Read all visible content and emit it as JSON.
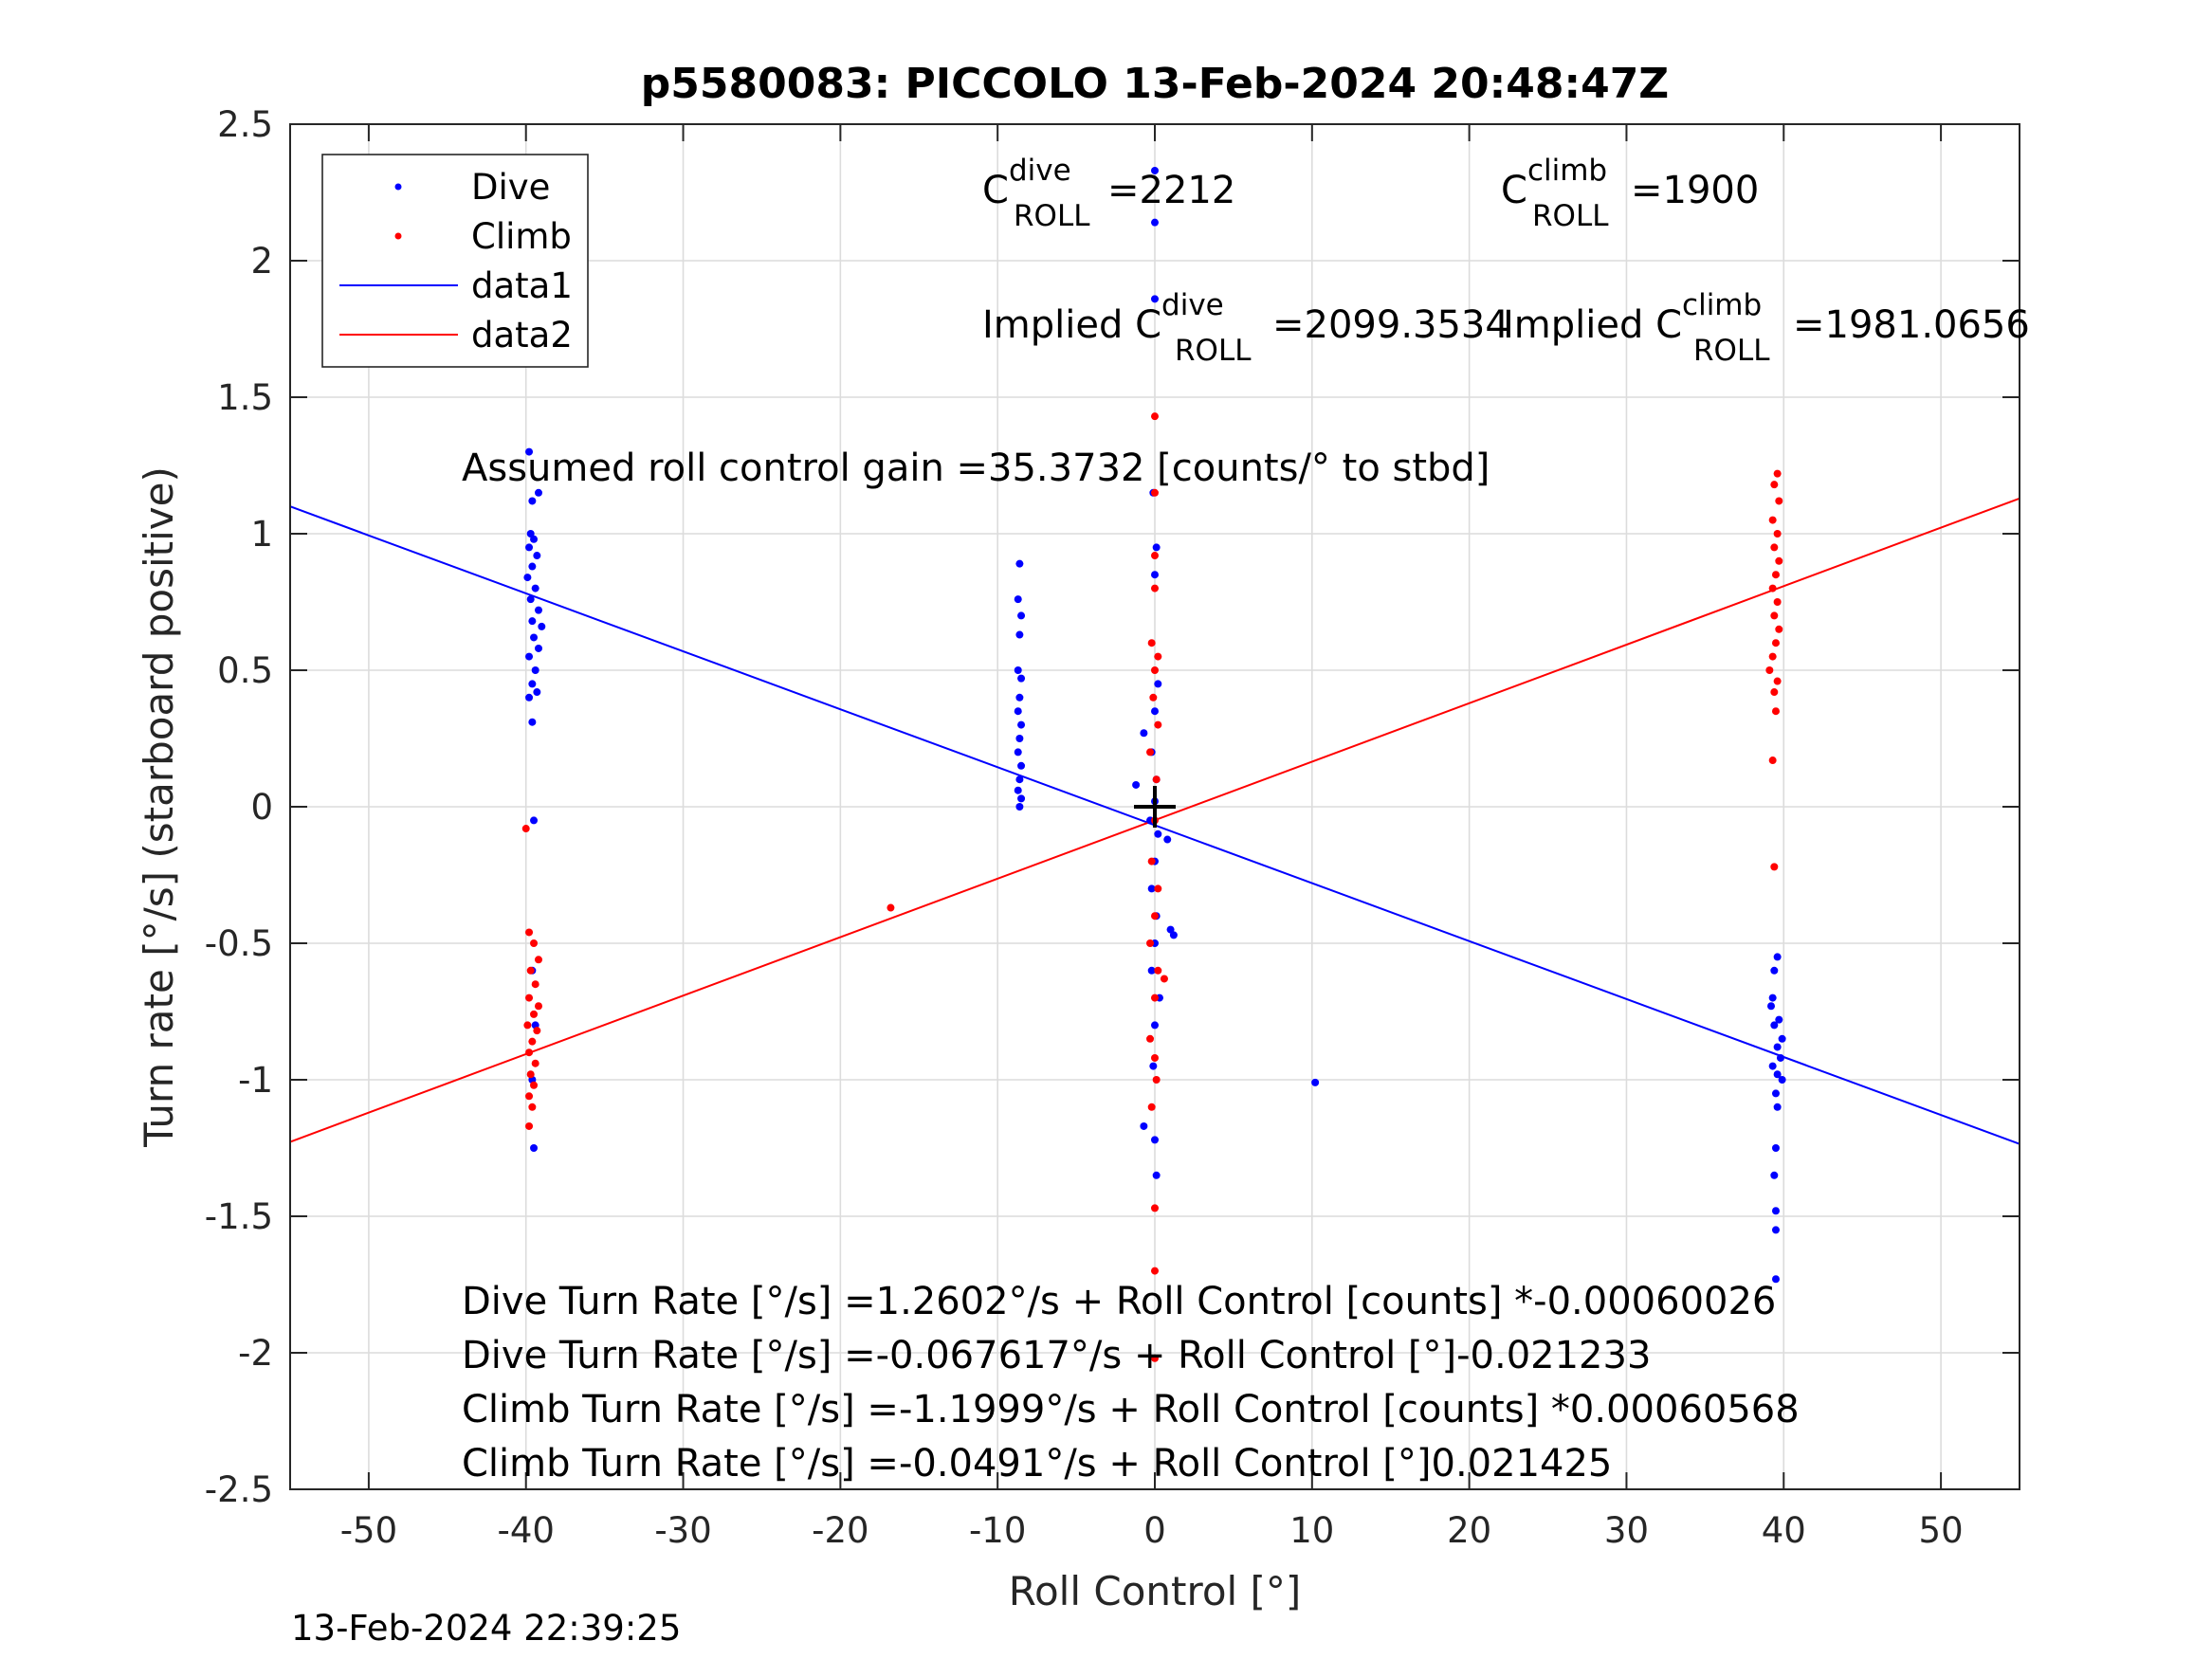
{
  "chart_data": {
    "type": "scatter",
    "title": "p5580083: PICCOLO 13-Feb-2024 20:48:47Z",
    "xlabel": "Roll Control [°]",
    "ylabel": "Turn rate [°/s] (starboard positive)",
    "xlim": [
      -55,
      55
    ],
    "ylim": [
      -2.5,
      2.5
    ],
    "xticks": [
      -50,
      -40,
      -30,
      -20,
      -10,
      0,
      10,
      20,
      30,
      40,
      50
    ],
    "yticks": [
      -2.5,
      -2,
      -1.5,
      -1,
      -0.5,
      0,
      0.5,
      1,
      1.5,
      2,
      2.5
    ],
    "xtick_labels": [
      "-50",
      "-40",
      "-30",
      "-20",
      "-10",
      "0",
      "10",
      "20",
      "30",
      "40",
      "50"
    ],
    "ytick_labels": [
      "-2.5",
      "-2",
      "-1.5",
      "-1",
      "-0.5",
      "0",
      "0.5",
      "1",
      "1.5",
      "2",
      "2.5"
    ],
    "grid": true,
    "legend_position": "top-left",
    "legend": [
      "Dive",
      "Climb",
      "data1",
      "data2"
    ],
    "colors": {
      "dive": "#0000ff",
      "climb": "#ff0000",
      "marker": "#000000"
    },
    "series": [
      {
        "name": "Dive",
        "kind": "points",
        "color": "#0000ff",
        "points": [
          [
            -39.8,
            1.3
          ],
          [
            -39.6,
            1.12
          ],
          [
            -39.2,
            1.15
          ],
          [
            -39.7,
            1.0
          ],
          [
            -39.5,
            0.98
          ],
          [
            -39.8,
            0.95
          ],
          [
            -39.3,
            0.92
          ],
          [
            -39.6,
            0.88
          ],
          [
            -39.9,
            0.84
          ],
          [
            -39.4,
            0.8
          ],
          [
            -39.7,
            0.76
          ],
          [
            -39.2,
            0.72
          ],
          [
            -39.6,
            0.68
          ],
          [
            -39.0,
            0.66
          ],
          [
            -39.5,
            0.62
          ],
          [
            -39.2,
            0.58
          ],
          [
            -39.8,
            0.55
          ],
          [
            -39.4,
            0.5
          ],
          [
            -39.6,
            0.45
          ],
          [
            -39.3,
            0.42
          ],
          [
            -39.8,
            0.4
          ],
          [
            -39.6,
            0.31
          ],
          [
            -39.5,
            -0.05
          ],
          [
            -39.6,
            -0.6
          ],
          [
            -39.4,
            -0.8
          ],
          [
            -39.6,
            -1.0
          ],
          [
            -39.5,
            -1.25
          ],
          [
            -8.6,
            0.89
          ],
          [
            -8.7,
            0.76
          ],
          [
            -8.5,
            0.7
          ],
          [
            -8.6,
            0.63
          ],
          [
            -8.7,
            0.5
          ],
          [
            -8.5,
            0.47
          ],
          [
            -8.6,
            0.4
          ],
          [
            -8.7,
            0.35
          ],
          [
            -8.5,
            0.3
          ],
          [
            -8.6,
            0.25
          ],
          [
            -8.7,
            0.2
          ],
          [
            -8.5,
            0.15
          ],
          [
            -8.6,
            0.1
          ],
          [
            -8.7,
            0.06
          ],
          [
            -8.5,
            0.03
          ],
          [
            -8.6,
            0.0
          ],
          [
            0.0,
            2.33
          ],
          [
            0.0,
            2.14
          ],
          [
            0.0,
            1.86
          ],
          [
            -0.1,
            1.15
          ],
          [
            0.1,
            0.95
          ],
          [
            0.0,
            0.85
          ],
          [
            -0.7,
            0.27
          ],
          [
            -1.2,
            0.08
          ],
          [
            0.2,
            0.45
          ],
          [
            0.0,
            0.35
          ],
          [
            -0.2,
            0.2
          ],
          [
            0.1,
            0.1
          ],
          [
            0.0,
            0.02
          ],
          [
            -0.3,
            -0.05
          ],
          [
            0.2,
            -0.1
          ],
          [
            0.0,
            -0.2
          ],
          [
            -0.2,
            -0.3
          ],
          [
            0.1,
            -0.4
          ],
          [
            0.0,
            -0.5
          ],
          [
            -0.2,
            -0.6
          ],
          [
            0.3,
            -0.7
          ],
          [
            1.0,
            -0.45
          ],
          [
            1.2,
            -0.47
          ],
          [
            0.8,
            -0.12
          ],
          [
            0.0,
            -0.8
          ],
          [
            -0.1,
            -0.95
          ],
          [
            -0.7,
            -1.17
          ],
          [
            0.0,
            -1.22
          ],
          [
            0.1,
            -1.35
          ],
          [
            10.2,
            -1.01
          ],
          [
            39.6,
            -0.55
          ],
          [
            39.4,
            -0.6
          ],
          [
            39.3,
            -0.7
          ],
          [
            39.2,
            -0.73
          ],
          [
            39.7,
            -0.78
          ],
          [
            39.4,
            -0.8
          ],
          [
            39.9,
            -0.85
          ],
          [
            39.6,
            -0.88
          ],
          [
            39.8,
            -0.92
          ],
          [
            39.3,
            -0.95
          ],
          [
            39.6,
            -0.98
          ],
          [
            39.9,
            -1.0
          ],
          [
            39.5,
            -1.05
          ],
          [
            39.6,
            -1.1
          ],
          [
            39.5,
            -1.25
          ],
          [
            39.4,
            -1.35
          ],
          [
            39.5,
            -1.48
          ],
          [
            39.5,
            -1.55
          ],
          [
            39.5,
            -1.73
          ]
        ]
      },
      {
        "name": "Climb",
        "kind": "points",
        "color": "#ff0000",
        "points": [
          [
            -40.0,
            -0.08
          ],
          [
            -39.8,
            -0.46
          ],
          [
            -39.5,
            -0.5
          ],
          [
            -39.2,
            -0.56
          ],
          [
            -39.7,
            -0.6
          ],
          [
            -39.4,
            -0.65
          ],
          [
            -39.8,
            -0.7
          ],
          [
            -39.2,
            -0.73
          ],
          [
            -39.5,
            -0.76
          ],
          [
            -39.9,
            -0.8
          ],
          [
            -39.3,
            -0.82
          ],
          [
            -39.6,
            -0.86
          ],
          [
            -39.8,
            -0.9
          ],
          [
            -39.4,
            -0.94
          ],
          [
            -39.7,
            -0.98
          ],
          [
            -39.5,
            -1.02
          ],
          [
            -39.8,
            -1.06
          ],
          [
            -39.6,
            -1.1
          ],
          [
            -39.8,
            -1.17
          ],
          [
            -16.8,
            -0.37
          ],
          [
            0.0,
            1.43
          ],
          [
            0.0,
            1.15
          ],
          [
            0.0,
            0.92
          ],
          [
            0.0,
            0.8
          ],
          [
            -0.2,
            0.6
          ],
          [
            0.2,
            0.55
          ],
          [
            0.0,
            0.5
          ],
          [
            -0.1,
            0.4
          ],
          [
            0.2,
            0.3
          ],
          [
            -0.3,
            0.2
          ],
          [
            0.1,
            0.1
          ],
          [
            0.0,
            -0.05
          ],
          [
            -0.2,
            -0.2
          ],
          [
            0.2,
            -0.3
          ],
          [
            0.0,
            -0.4
          ],
          [
            -0.3,
            -0.5
          ],
          [
            0.2,
            -0.6
          ],
          [
            0.6,
            -0.63
          ],
          [
            0.0,
            -0.7
          ],
          [
            -0.3,
            -0.85
          ],
          [
            0.0,
            -0.92
          ],
          [
            0.1,
            -1.0
          ],
          [
            -0.2,
            -1.1
          ],
          [
            0.0,
            -1.47
          ],
          [
            0.0,
            -1.7
          ],
          [
            0.0,
            -2.02
          ],
          [
            39.6,
            1.22
          ],
          [
            39.4,
            1.18
          ],
          [
            39.7,
            1.12
          ],
          [
            39.3,
            1.05
          ],
          [
            39.6,
            1.0
          ],
          [
            39.4,
            0.95
          ],
          [
            39.7,
            0.9
          ],
          [
            39.5,
            0.85
          ],
          [
            39.3,
            0.8
          ],
          [
            39.6,
            0.75
          ],
          [
            39.4,
            0.7
          ],
          [
            39.7,
            0.65
          ],
          [
            39.5,
            0.6
          ],
          [
            39.3,
            0.55
          ],
          [
            39.1,
            0.5
          ],
          [
            39.6,
            0.46
          ],
          [
            39.4,
            0.42
          ],
          [
            39.5,
            0.35
          ],
          [
            39.3,
            0.17
          ],
          [
            39.4,
            -0.22
          ]
        ]
      },
      {
        "name": "data1",
        "kind": "line",
        "color": "#0000ff",
        "points": [
          [
            -55,
            1.0999
          ],
          [
            55,
            -1.2351
          ]
        ]
      },
      {
        "name": "data2",
        "kind": "line",
        "color": "#ff0000",
        "points": [
          [
            -55,
            -1.2275
          ],
          [
            55,
            1.1293
          ]
        ]
      }
    ],
    "center_marker": {
      "x": 0,
      "y": 0
    },
    "annotations": {
      "c_dive": {
        "prefix": "C",
        "sup": "dive",
        "sub": "ROLL",
        "value": "=2212"
      },
      "c_climb": {
        "prefix": "C",
        "sup": "climb",
        "sub": "ROLL",
        "value": "=1900"
      },
      "implied_dive": {
        "prefix": "Implied C",
        "sup": "dive",
        "sub": "ROLL",
        "value": "=2099.3534"
      },
      "implied_climb": {
        "prefix": "Implied C",
        "sup": "climb",
        "sub": "ROLL",
        "value": "=1981.0656"
      },
      "gain": "Assumed roll control gain =35.3732 [counts/° to stbd]",
      "eq1": "Dive Turn Rate [°/s] =1.2602°/s + Roll Control [counts] *-0.00060026",
      "eq2": "Dive Turn Rate [°/s] =-0.067617°/s + Roll Control [°]-0.021233",
      "eq3": "Climb Turn Rate [°/s] =-1.1999°/s + Roll Control [counts] *0.00060568",
      "eq4": "Climb Turn Rate [°/s] =-0.0491°/s + Roll Control [°]0.021425"
    }
  },
  "footer": {
    "timestamp": "13-Feb-2024 22:39:25"
  }
}
